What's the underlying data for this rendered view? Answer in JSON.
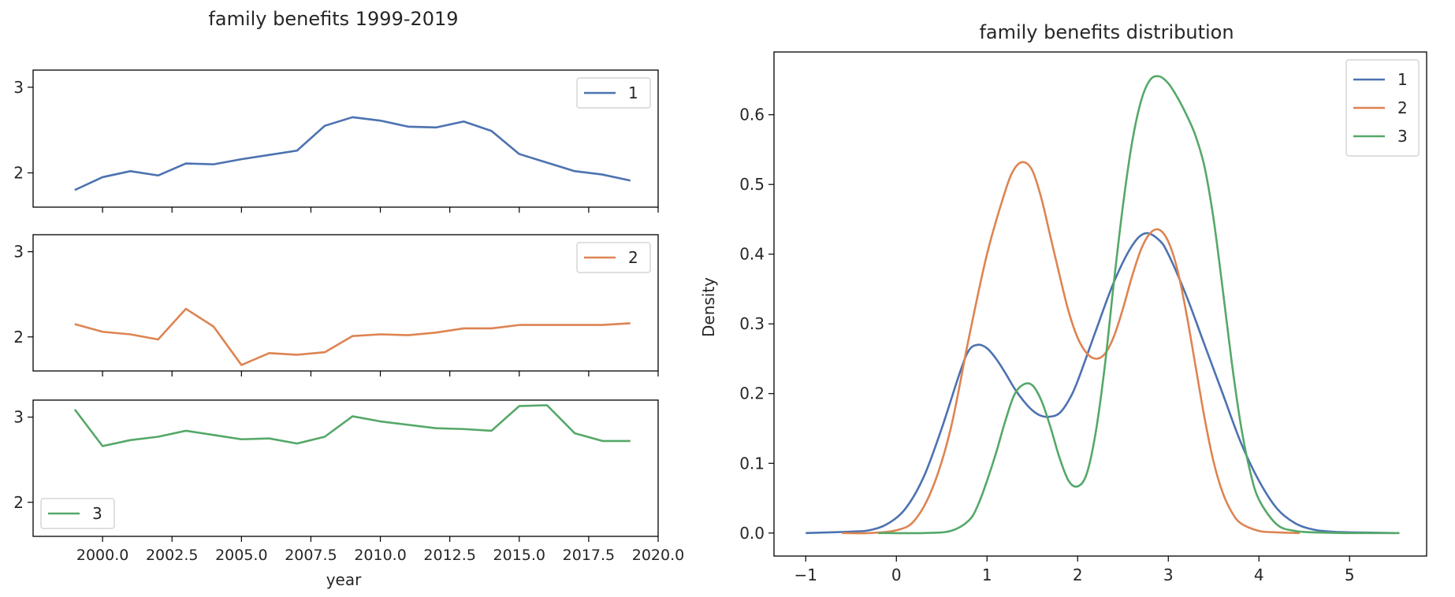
{
  "figure": {
    "background": "#ffffff"
  },
  "chart_data": [
    {
      "type": "line",
      "title": "family benefits 1999-2019",
      "xlabel": "year",
      "ylabel": "",
      "x": [
        1999,
        2000,
        2001,
        2002,
        2003,
        2004,
        2005,
        2006,
        2007,
        2008,
        2009,
        2010,
        2011,
        2012,
        2013,
        2014,
        2015,
        2016,
        2017,
        2018,
        2019
      ],
      "xlim": [
        1997.5,
        2020.0
      ],
      "xticks": [
        2000.0,
        2002.5,
        2005.0,
        2007.5,
        2010.0,
        2012.5,
        2015.0,
        2017.5,
        2020.0
      ],
      "xtick_labels": [
        "2000.0",
        "2002.5",
        "2005.0",
        "2007.5",
        "2010.0",
        "2012.5",
        "2015.0",
        "2017.5",
        "2020.0"
      ],
      "ylim": [
        1.6,
        3.2
      ],
      "yticks": [
        2,
        3
      ],
      "ytick_labels": [
        "2",
        "3"
      ],
      "grid": false,
      "subplots": [
        {
          "name": "1",
          "color": "#4c72b0",
          "legend": "top-right",
          "values": [
            1.8,
            1.95,
            2.02,
            1.97,
            2.11,
            2.1,
            2.16,
            2.21,
            2.26,
            2.55,
            2.65,
            2.61,
            2.54,
            2.53,
            2.6,
            2.49,
            2.22,
            2.12,
            2.02,
            1.98,
            1.91
          ]
        },
        {
          "name": "2",
          "color": "#dd8452",
          "legend": "top-right",
          "values": [
            2.15,
            2.06,
            2.03,
            1.97,
            2.33,
            2.12,
            1.67,
            1.81,
            1.79,
            1.82,
            2.01,
            2.03,
            2.02,
            2.05,
            2.1,
            2.1,
            2.14,
            2.14,
            2.14,
            2.14,
            2.16
          ]
        },
        {
          "name": "3",
          "color": "#55a868",
          "legend": "bottom-left",
          "values": [
            3.09,
            2.66,
            2.73,
            2.77,
            2.84,
            2.79,
            2.74,
            2.75,
            2.69,
            2.77,
            3.01,
            2.95,
            2.91,
            2.87,
            2.86,
            2.84,
            3.13,
            3.14,
            2.81,
            2.72,
            2.72
          ]
        }
      ]
    },
    {
      "type": "kde",
      "title": "family benefits distribution",
      "xlabel": "",
      "ylabel": "Density",
      "xlim": [
        -1.35,
        5.85
      ],
      "ylim": [
        -0.033,
        0.69
      ],
      "xticks": [
        -1,
        0,
        1,
        2,
        3,
        4,
        5
      ],
      "xtick_labels": [
        "−1",
        "0",
        "1",
        "2",
        "3",
        "4",
        "5"
      ],
      "yticks": [
        0.0,
        0.1,
        0.2,
        0.3,
        0.4,
        0.5,
        0.6
      ],
      "ytick_labels": [
        "0.0",
        "0.1",
        "0.2",
        "0.3",
        "0.4",
        "0.5",
        "0.6"
      ],
      "grid": false,
      "legend": "top-right",
      "series": [
        {
          "name": "1",
          "color": "#4c72b0",
          "points": [
            [
              -1.0,
              0.0
            ],
            [
              -0.5,
              0.002
            ],
            [
              -0.3,
              0.004
            ],
            [
              -0.1,
              0.013
            ],
            [
              0.1,
              0.035
            ],
            [
              0.3,
              0.08
            ],
            [
              0.5,
              0.15
            ],
            [
              0.7,
              0.23
            ],
            [
              0.8,
              0.262
            ],
            [
              0.9,
              0.27
            ],
            [
              1.0,
              0.265
            ],
            [
              1.1,
              0.25
            ],
            [
              1.2,
              0.23
            ],
            [
              1.3,
              0.208
            ],
            [
              1.4,
              0.19
            ],
            [
              1.5,
              0.176
            ],
            [
              1.6,
              0.168
            ],
            [
              1.7,
              0.167
            ],
            [
              1.8,
              0.172
            ],
            [
              1.9,
              0.19
            ],
            [
              2.0,
              0.218
            ],
            [
              2.2,
              0.29
            ],
            [
              2.4,
              0.36
            ],
            [
              2.6,
              0.412
            ],
            [
              2.75,
              0.43
            ],
            [
              2.9,
              0.42
            ],
            [
              3.0,
              0.4
            ],
            [
              3.2,
              0.34
            ],
            [
              3.4,
              0.27
            ],
            [
              3.6,
              0.2
            ],
            [
              3.8,
              0.13
            ],
            [
              4.0,
              0.075
            ],
            [
              4.2,
              0.035
            ],
            [
              4.4,
              0.014
            ],
            [
              4.6,
              0.005
            ],
            [
              4.8,
              0.002
            ],
            [
              5.0,
              0.001
            ],
            [
              5.5,
              0.0
            ]
          ]
        },
        {
          "name": "2",
          "color": "#dd8452",
          "points": [
            [
              -0.6,
              0.0
            ],
            [
              -0.3,
              0.0
            ],
            [
              0.0,
              0.004
            ],
            [
              0.2,
              0.018
            ],
            [
              0.4,
              0.065
            ],
            [
              0.6,
              0.15
            ],
            [
              0.8,
              0.28
            ],
            [
              1.0,
              0.4
            ],
            [
              1.2,
              0.49
            ],
            [
              1.3,
              0.522
            ],
            [
              1.4,
              0.532
            ],
            [
              1.5,
              0.52
            ],
            [
              1.6,
              0.48
            ],
            [
              1.7,
              0.425
            ],
            [
              1.8,
              0.37
            ],
            [
              1.9,
              0.318
            ],
            [
              2.0,
              0.28
            ],
            [
              2.1,
              0.258
            ],
            [
              2.2,
              0.25
            ],
            [
              2.3,
              0.257
            ],
            [
              2.4,
              0.282
            ],
            [
              2.5,
              0.322
            ],
            [
              2.6,
              0.368
            ],
            [
              2.7,
              0.407
            ],
            [
              2.8,
              0.43
            ],
            [
              2.9,
              0.435
            ],
            [
              3.0,
              0.418
            ],
            [
              3.1,
              0.378
            ],
            [
              3.2,
              0.315
            ],
            [
              3.3,
              0.24
            ],
            [
              3.4,
              0.165
            ],
            [
              3.5,
              0.102
            ],
            [
              3.6,
              0.058
            ],
            [
              3.7,
              0.03
            ],
            [
              3.8,
              0.014
            ],
            [
              4.0,
              0.003
            ],
            [
              4.2,
              0.001
            ],
            [
              4.45,
              0.0
            ]
          ]
        },
        {
          "name": "3",
          "color": "#55a868",
          "points": [
            [
              -0.2,
              0.0
            ],
            [
              0.3,
              0.0
            ],
            [
              0.6,
              0.003
            ],
            [
              0.8,
              0.018
            ],
            [
              0.9,
              0.04
            ],
            [
              1.0,
              0.075
            ],
            [
              1.1,
              0.115
            ],
            [
              1.2,
              0.16
            ],
            [
              1.3,
              0.198
            ],
            [
              1.4,
              0.213
            ],
            [
              1.5,
              0.212
            ],
            [
              1.6,
              0.19
            ],
            [
              1.7,
              0.152
            ],
            [
              1.8,
              0.108
            ],
            [
              1.9,
              0.075
            ],
            [
              2.0,
              0.067
            ],
            [
              2.1,
              0.085
            ],
            [
              2.2,
              0.145
            ],
            [
              2.3,
              0.24
            ],
            [
              2.4,
              0.36
            ],
            [
              2.5,
              0.47
            ],
            [
              2.6,
              0.56
            ],
            [
              2.7,
              0.62
            ],
            [
              2.8,
              0.65
            ],
            [
              2.9,
              0.655
            ],
            [
              3.0,
              0.645
            ],
            [
              3.1,
              0.625
            ],
            [
              3.2,
              0.6
            ],
            [
              3.3,
              0.57
            ],
            [
              3.4,
              0.525
            ],
            [
              3.5,
              0.45
            ],
            [
              3.6,
              0.35
            ],
            [
              3.7,
              0.245
            ],
            [
              3.8,
              0.155
            ],
            [
              3.9,
              0.09
            ],
            [
              4.0,
              0.048
            ],
            [
              4.2,
              0.012
            ],
            [
              4.4,
              0.003
            ],
            [
              4.6,
              0.001
            ],
            [
              5.0,
              0.0
            ],
            [
              5.55,
              0.0
            ]
          ]
        }
      ]
    }
  ]
}
